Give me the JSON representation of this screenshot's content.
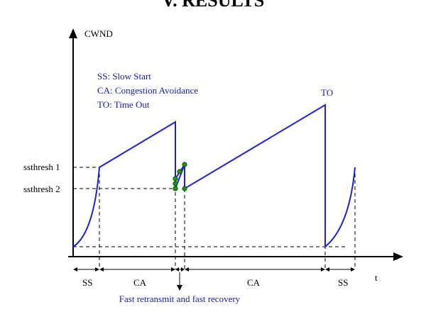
{
  "heading": "V.   RESULTS",
  "diagram": {
    "y_axis_label": "CWND",
    "x_axis_label": "t",
    "threshold_labels": [
      "ssthresh 1",
      "ssthresh 2"
    ],
    "legend": [
      "SS: Slow Start",
      "CA: Congestion Avoidance",
      "TO: Time Out"
    ],
    "peak_label": "TO",
    "phases": [
      "SS",
      "CA",
      "CA",
      "SS"
    ],
    "fast_recovery_label": "Fast retransmit and fast recovery",
    "colors": {
      "curve": "#2020d8",
      "text_blue": "#1a1ab0",
      "dots": "#1f8f1f",
      "axis": "#000000"
    }
  }
}
